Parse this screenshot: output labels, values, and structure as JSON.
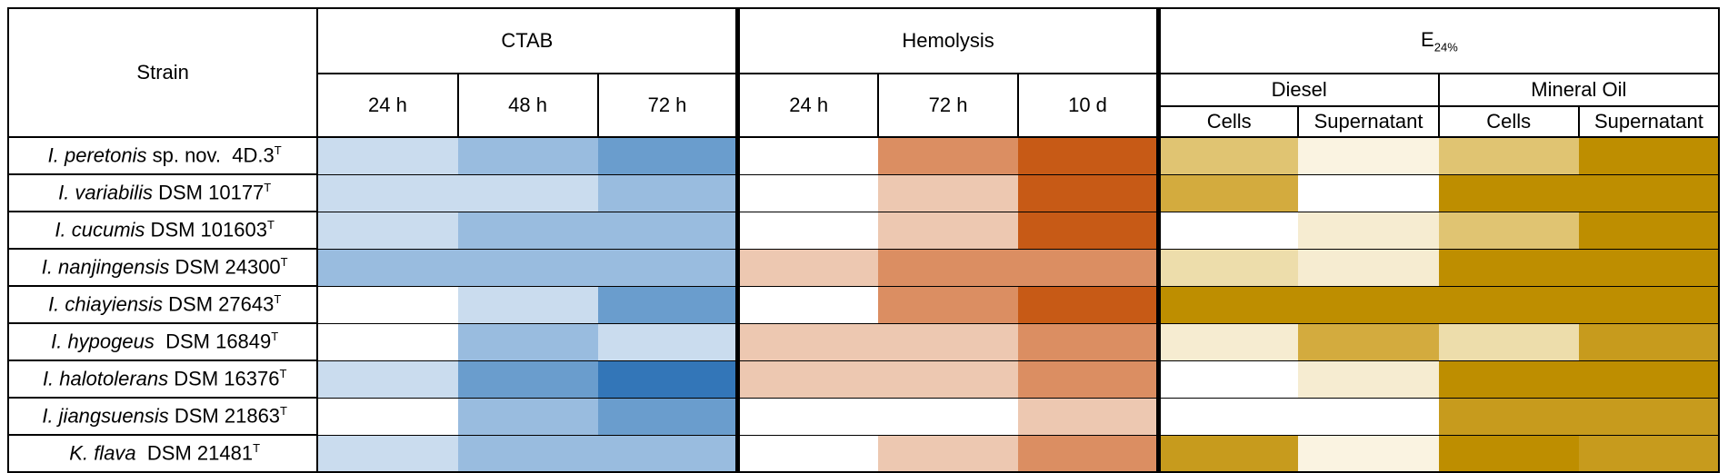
{
  "header": {
    "strain": "Strain",
    "groups": [
      {
        "label": "CTAB"
      },
      {
        "label": "Hemolysis"
      },
      {
        "label": "E",
        "sub": "24%"
      }
    ],
    "e24_subgroups": [
      "Diesel",
      "Mineral Oil"
    ],
    "time_columns": [
      "24 h",
      "48 h",
      "72 h",
      "24 h",
      "72 h",
      "10 d"
    ],
    "e24_columns": [
      "Cells",
      "Supernatant",
      "Cells",
      "Supernatant"
    ]
  },
  "strains": [
    {
      "genus": "I. peretonis",
      "rest": " sp. nov.  4D.3",
      "sup": "T"
    },
    {
      "genus": "I. variabilis",
      "rest": " DSM 10177",
      "sup": "T"
    },
    {
      "genus": "I. cucumis",
      "rest": " DSM 101603",
      "sup": "T"
    },
    {
      "genus": "I. nanjingensis",
      "rest": " DSM 24300",
      "sup": "T"
    },
    {
      "genus": "I. chiayiensis",
      "rest": " DSM 27643",
      "sup": "T"
    },
    {
      "genus": "I. hypogeus",
      "rest": "  DSM 16849",
      "sup": "T"
    },
    {
      "genus": "I. halotolerans",
      "rest": " DSM 16376",
      "sup": "T"
    },
    {
      "genus": "I. jiangsuensis",
      "rest": " DSM 21863",
      "sup": "T"
    },
    {
      "genus": "K. flava",
      "rest": "  DSM 21481",
      "sup": "T"
    }
  ],
  "colors": {
    "ctab": [
      "#ffffff",
      "#cadcee",
      "#99bcdf",
      "#6a9dcd",
      "#3376b8"
    ],
    "hemolysis": [
      "#ffffff",
      "#edc8b1",
      "#db8e62",
      "#c75a16"
    ],
    "e24": [
      "#ffffff",
      "#faf3e1",
      "#f6ecd1",
      "#edddab",
      "#e0c472",
      "#d3ab3e",
      "#c79b1d",
      "#be8e00"
    ]
  },
  "chart_data": {
    "type": "heatmap",
    "title": "",
    "rows": [
      "I. peretonis sp. nov. 4D.3T",
      "I. variabilis DSM 10177T",
      "I. cucumis DSM 101603T",
      "I. nanjingensis DSM 24300T",
      "I. chiayiensis DSM 27643T",
      "I. hypogeus DSM 16849T",
      "I. halotolerans DSM 16376T",
      "I. jiangsuensis DSM 21863T",
      "K. flava DSM 21481T"
    ],
    "columns": [
      "CTAB 24 h",
      "CTAB 48 h",
      "CTAB 72 h",
      "Hemolysis 24 h",
      "Hemolysis 72 h",
      "Hemolysis 10 d",
      "E24% Diesel Cells",
      "E24% Diesel Supernatant",
      "E24% Mineral Oil Cells",
      "E24% Mineral Oil Supernatant"
    ],
    "scales": [
      "ctab",
      "ctab",
      "ctab",
      "hemolysis",
      "hemolysis",
      "hemolysis",
      "e24",
      "e24",
      "e24",
      "e24"
    ],
    "levels": [
      [
        1,
        2,
        3,
        0,
        2,
        3,
        4,
        1,
        4,
        7
      ],
      [
        1,
        1,
        2,
        0,
        1,
        3,
        5,
        0,
        7,
        7
      ],
      [
        1,
        2,
        2,
        0,
        1,
        3,
        0,
        2,
        4,
        7
      ],
      [
        2,
        2,
        2,
        1,
        2,
        2,
        3,
        2,
        7,
        7
      ],
      [
        0,
        1,
        3,
        0,
        2,
        3,
        7,
        7,
        7,
        7
      ],
      [
        0,
        2,
        1,
        1,
        1,
        2,
        2,
        5,
        3,
        6
      ],
      [
        1,
        3,
        4,
        1,
        1,
        2,
        0,
        2,
        7,
        7
      ],
      [
        0,
        2,
        3,
        0,
        0,
        1,
        0,
        0,
        6,
        6
      ],
      [
        1,
        2,
        2,
        0,
        1,
        2,
        6,
        1,
        7,
        6
      ]
    ]
  }
}
